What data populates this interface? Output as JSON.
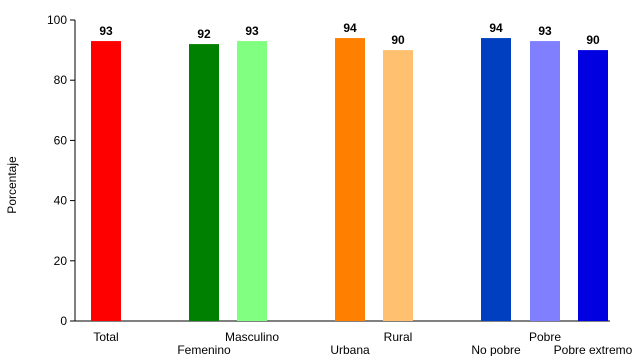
{
  "chart_data": {
    "type": "bar",
    "title": "",
    "xlabel": "",
    "ylabel": "Porcentaje",
    "ylim": [
      0,
      100
    ],
    "yticks": [
      0,
      20,
      40,
      60,
      80,
      100
    ],
    "grid": false,
    "legend": "none",
    "categories": [
      "Total",
      "Femenino",
      "Masculino",
      "Urbana",
      "Rural",
      "No pobre",
      "Pobre",
      "Pobre extremo"
    ],
    "values": [
      93,
      92,
      93,
      94,
      90,
      94,
      93,
      90
    ],
    "colors": [
      "#ff0000",
      "#008000",
      "#80ff80",
      "#ff8000",
      "#ffc070",
      "#0040c0",
      "#8080ff",
      "#0000e0"
    ],
    "label_row": [
      "upper",
      "lower",
      "upper",
      "lower",
      "upper",
      "lower",
      "upper",
      "lower"
    ]
  }
}
